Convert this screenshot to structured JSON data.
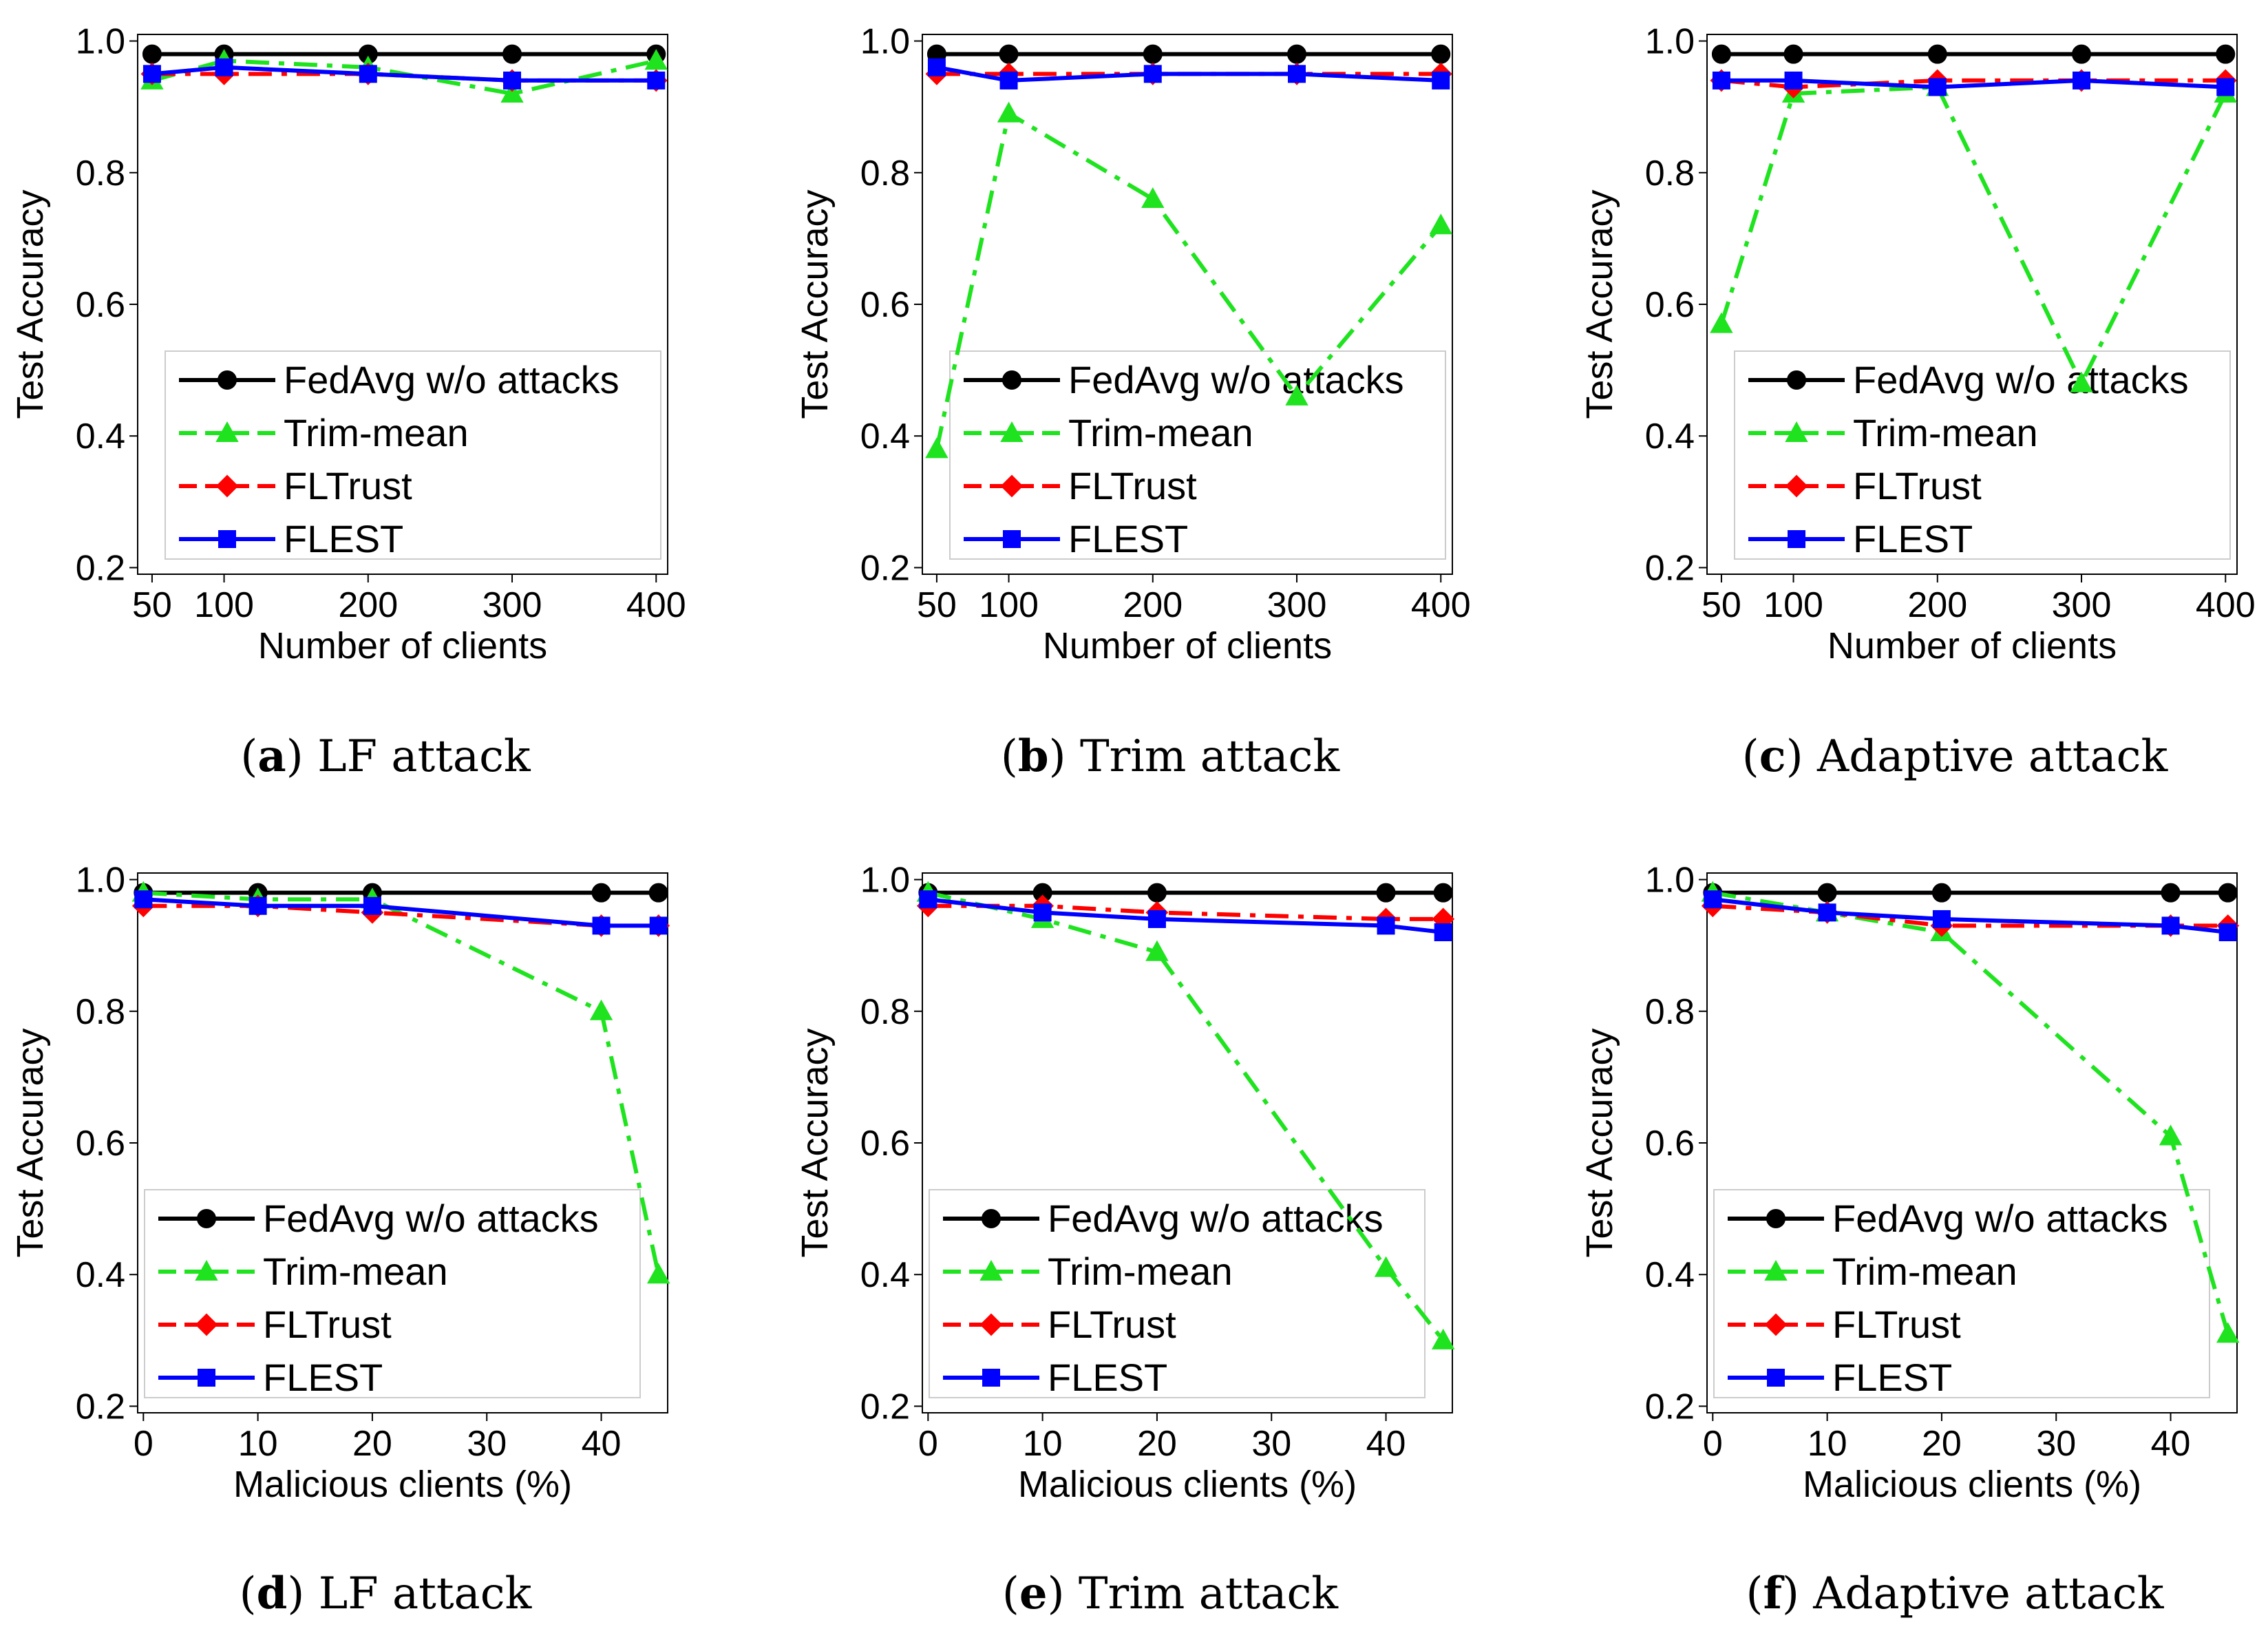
{
  "colors": {
    "fedavg": "#000000",
    "trim_mean": "#1fe31f",
    "fltrust": "#ff0000",
    "flest": "#0000ff"
  },
  "chart_data": [
    {
      "type": "line",
      "id": "a",
      "caption_letter": "a",
      "caption_title": "LF attack",
      "x": [
        50,
        100,
        200,
        300,
        400
      ],
      "xticks": [
        50,
        100,
        200,
        300,
        400
      ],
      "xlim": [
        40,
        408
      ],
      "xlabel": "Number of clients",
      "ylabel": "Test Accuracy",
      "ylim": [
        0.19,
        1.01
      ],
      "yticks": [
        0.2,
        0.4,
        0.6,
        0.8,
        1.0
      ],
      "ytick_labels": [
        "0.2",
        "0.4",
        "0.6",
        "0.8",
        "1.0"
      ],
      "legend": "lower right",
      "series": [
        {
          "name": "FedAvg w/o attacks",
          "key": "fedavg",
          "values": [
            0.98,
            0.98,
            0.98,
            0.98,
            0.98
          ]
        },
        {
          "name": "Trim-mean",
          "key": "trim_mean",
          "values": [
            0.94,
            0.97,
            0.96,
            0.92,
            0.97
          ]
        },
        {
          "name": "FLTrust",
          "key": "fltrust",
          "values": [
            0.95,
            0.95,
            0.95,
            0.94,
            0.94
          ]
        },
        {
          "name": "FLEST",
          "key": "flest",
          "values": [
            0.95,
            0.96,
            0.95,
            0.94,
            0.94
          ]
        }
      ]
    },
    {
      "type": "line",
      "id": "b",
      "caption_letter": "b",
      "caption_title": "Trim attack",
      "x": [
        50,
        100,
        200,
        300,
        400
      ],
      "xticks": [
        50,
        100,
        200,
        300,
        400
      ],
      "xlim": [
        40,
        408
      ],
      "xlabel": "Number of clients",
      "ylabel": "Test Accuracy",
      "ylim": [
        0.19,
        1.01
      ],
      "yticks": [
        0.2,
        0.4,
        0.6,
        0.8,
        1.0
      ],
      "ytick_labels": [
        "0.2",
        "0.4",
        "0.6",
        "0.8",
        "1.0"
      ],
      "legend": "lower right",
      "series": [
        {
          "name": "FedAvg w/o attacks",
          "key": "fedavg",
          "values": [
            0.98,
            0.98,
            0.98,
            0.98,
            0.98
          ]
        },
        {
          "name": "Trim-mean",
          "key": "trim_mean",
          "values": [
            0.38,
            0.89,
            0.76,
            0.46,
            0.72
          ]
        },
        {
          "name": "FLTrust",
          "key": "fltrust",
          "values": [
            0.95,
            0.95,
            0.95,
            0.95,
            0.95
          ]
        },
        {
          "name": "FLEST",
          "key": "flest",
          "values": [
            0.96,
            0.94,
            0.95,
            0.95,
            0.94
          ]
        }
      ]
    },
    {
      "type": "line",
      "id": "c",
      "caption_letter": "c",
      "caption_title": "Adaptive attack",
      "x": [
        50,
        100,
        200,
        300,
        400
      ],
      "xticks": [
        50,
        100,
        200,
        300,
        400
      ],
      "xlim": [
        40,
        408
      ],
      "xlabel": "Number of clients",
      "ylabel": "Test Accuracy",
      "ylim": [
        0.19,
        1.01
      ],
      "yticks": [
        0.2,
        0.4,
        0.6,
        0.8,
        1.0
      ],
      "ytick_labels": [
        "0.2",
        "0.4",
        "0.6",
        "0.8",
        "1.0"
      ],
      "legend": "lower right",
      "series": [
        {
          "name": "FedAvg w/o attacks",
          "key": "fedavg",
          "values": [
            0.98,
            0.98,
            0.98,
            0.98,
            0.98
          ]
        },
        {
          "name": "Trim-mean",
          "key": "trim_mean",
          "values": [
            0.57,
            0.92,
            0.93,
            0.48,
            0.92
          ]
        },
        {
          "name": "FLTrust",
          "key": "fltrust",
          "values": [
            0.94,
            0.93,
            0.94,
            0.94,
            0.94
          ]
        },
        {
          "name": "FLEST",
          "key": "flest",
          "values": [
            0.94,
            0.94,
            0.93,
            0.94,
            0.93
          ]
        }
      ]
    },
    {
      "type": "line",
      "id": "d",
      "caption_letter": "d",
      "caption_title": "LF attack",
      "x": [
        0,
        10,
        20,
        40,
        45
      ],
      "xticks": [
        0,
        10,
        20,
        30,
        40
      ],
      "xlim": [
        -0.5,
        45.8
      ],
      "xlabel": "Malicious clients (%)",
      "ylabel": "Test Accuracy",
      "ylim": [
        0.19,
        1.01
      ],
      "yticks": [
        0.2,
        0.4,
        0.6,
        0.8,
        1.0
      ],
      "ytick_labels": [
        "0.2",
        "0.4",
        "0.6",
        "0.8",
        "1.0"
      ],
      "legend": "lower left",
      "series": [
        {
          "name": "FedAvg w/o attacks",
          "key": "fedavg",
          "values": [
            0.98,
            0.98,
            0.98,
            0.98,
            0.98
          ]
        },
        {
          "name": "Trim-mean",
          "key": "trim_mean",
          "values": [
            0.98,
            0.97,
            0.97,
            0.8,
            0.4
          ]
        },
        {
          "name": "FLTrust",
          "key": "fltrust",
          "values": [
            0.96,
            0.96,
            0.95,
            0.93,
            0.93
          ]
        },
        {
          "name": "FLEST",
          "key": "flest",
          "values": [
            0.97,
            0.96,
            0.96,
            0.93,
            0.93
          ]
        }
      ]
    },
    {
      "type": "line",
      "id": "e",
      "caption_letter": "e",
      "caption_title": "Trim attack",
      "x": [
        0,
        10,
        20,
        40,
        45
      ],
      "xticks": [
        0,
        10,
        20,
        30,
        40
      ],
      "xlim": [
        -0.5,
        45.8
      ],
      "xlabel": "Malicious clients (%)",
      "ylabel": "Test Accuracy",
      "ylim": [
        0.19,
        1.01
      ],
      "yticks": [
        0.2,
        0.4,
        0.6,
        0.8,
        1.0
      ],
      "ytick_labels": [
        "0.2",
        "0.4",
        "0.6",
        "0.8",
        "1.0"
      ],
      "legend": "lower left",
      "series": [
        {
          "name": "FedAvg w/o attacks",
          "key": "fedavg",
          "values": [
            0.98,
            0.98,
            0.98,
            0.98,
            0.98
          ]
        },
        {
          "name": "Trim-mean",
          "key": "trim_mean",
          "values": [
            0.98,
            0.94,
            0.89,
            0.41,
            0.3
          ]
        },
        {
          "name": "FLTrust",
          "key": "fltrust",
          "values": [
            0.96,
            0.96,
            0.95,
            0.94,
            0.94
          ]
        },
        {
          "name": "FLEST",
          "key": "flest",
          "values": [
            0.97,
            0.95,
            0.94,
            0.93,
            0.92
          ]
        }
      ]
    },
    {
      "type": "line",
      "id": "f",
      "caption_letter": "f",
      "caption_title": "Adaptive attack",
      "x": [
        0,
        10,
        20,
        40,
        45
      ],
      "xticks": [
        0,
        10,
        20,
        30,
        40
      ],
      "xlim": [
        -0.5,
        45.8
      ],
      "xlabel": "Malicious clients (%)",
      "ylabel": "Test Accuracy",
      "ylim": [
        0.19,
        1.01
      ],
      "yticks": [
        0.2,
        0.4,
        0.6,
        0.8,
        1.0
      ],
      "ytick_labels": [
        "0.2",
        "0.4",
        "0.6",
        "0.8",
        "1.0"
      ],
      "legend": "lower left",
      "series": [
        {
          "name": "FedAvg w/o attacks",
          "key": "fedavg",
          "values": [
            0.98,
            0.98,
            0.98,
            0.98,
            0.98
          ]
        },
        {
          "name": "Trim-mean",
          "key": "trim_mean",
          "values": [
            0.98,
            0.95,
            0.92,
            0.61,
            0.31
          ]
        },
        {
          "name": "FLTrust",
          "key": "fltrust",
          "values": [
            0.96,
            0.95,
            0.93,
            0.93,
            0.93
          ]
        },
        {
          "name": "FLEST",
          "key": "flest",
          "values": [
            0.97,
            0.95,
            0.94,
            0.93,
            0.92
          ]
        }
      ]
    }
  ]
}
